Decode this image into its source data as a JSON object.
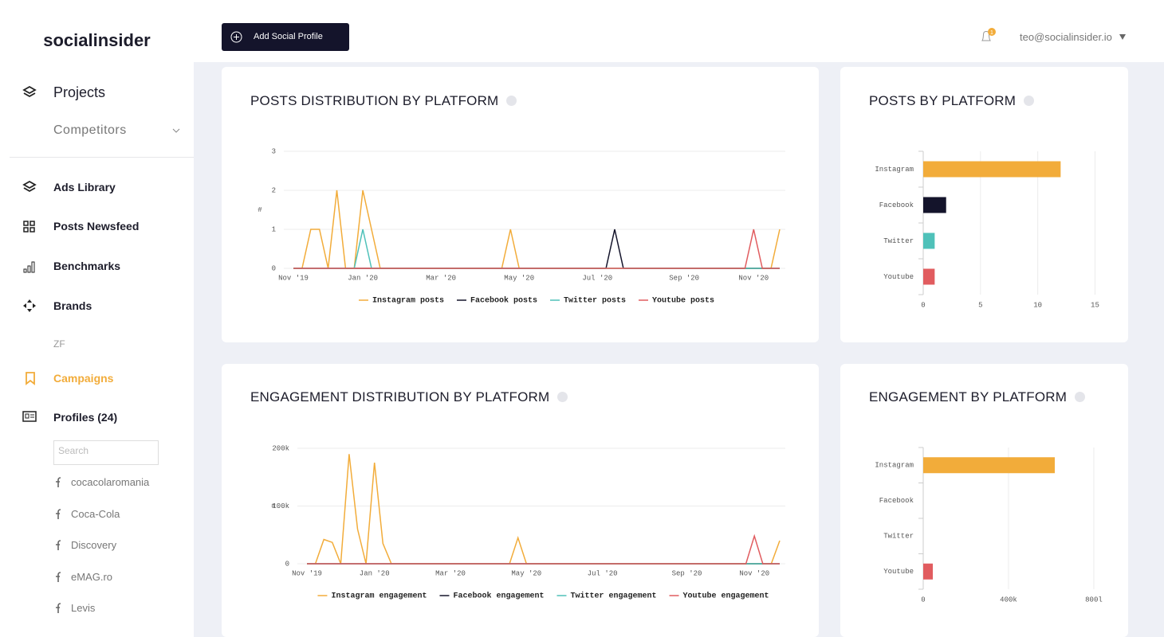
{
  "sidebar": {
    "logo": "socialinsider",
    "projects": "Projects",
    "competitors": "Competitors",
    "nav": [
      "Ads Library",
      "Posts Newsfeed",
      "Benchmarks",
      "Brands"
    ],
    "brand_item": "ZF",
    "campaigns": "Campaigns",
    "profiles": "Profiles (24)",
    "search_placeholder": "Search",
    "profile_list": [
      "cocacolaromania",
      "Coca-Cola",
      "Discovery",
      "eMAG.ro",
      "Levis"
    ]
  },
  "header": {
    "button": "Add Social Profile",
    "notifications": "1",
    "user": "teo@socialinsider.io"
  },
  "chart_data": [
    {
      "type": "line",
      "title": "POSTS DISTRIBUTION BY PLATFORM",
      "ylabel": "#",
      "categories": [
        "Nov '19",
        null,
        null,
        null,
        null,
        null,
        null,
        null,
        "Jan '20",
        null,
        null,
        null,
        null,
        null,
        null,
        null,
        null,
        "Mar '20",
        null,
        null,
        null,
        null,
        null,
        null,
        null,
        null,
        "May '20",
        null,
        null,
        null,
        null,
        null,
        null,
        null,
        null,
        "Jul '20",
        null,
        null,
        null,
        null,
        null,
        null,
        null,
        null,
        null,
        "Sep '20",
        null,
        null,
        null,
        null,
        null,
        null,
        null,
        "Nov '20",
        null,
        null,
        null
      ],
      "series": [
        {
          "name": "Instagram posts",
          "color": "#f2ac3a",
          "values": [
            0,
            0,
            1,
            1,
            0,
            2,
            0,
            0,
            2,
            1,
            0,
            0,
            0,
            0,
            0,
            0,
            0,
            0,
            0,
            0,
            0,
            0,
            0,
            0,
            0,
            1,
            0,
            0,
            0,
            0,
            0,
            0,
            0,
            0,
            0,
            0,
            0,
            0,
            0,
            0,
            0,
            0,
            0,
            0,
            0,
            0,
            0,
            0,
            0,
            0,
            0,
            0,
            0,
            0,
            0,
            0,
            1
          ]
        },
        {
          "name": "Facebook posts",
          "color": "#14142b",
          "values": [
            0,
            0,
            0,
            0,
            0,
            0,
            0,
            0,
            0,
            0,
            0,
            0,
            0,
            0,
            0,
            0,
            0,
            0,
            0,
            0,
            0,
            0,
            0,
            0,
            0,
            0,
            0,
            0,
            0,
            0,
            0,
            0,
            0,
            0,
            0,
            0,
            0,
            1,
            0,
            0,
            0,
            0,
            0,
            0,
            0,
            0,
            0,
            0,
            0,
            0,
            0,
            0,
            0,
            0,
            0,
            0,
            0
          ]
        },
        {
          "name": "Twitter posts",
          "color": "#4fc1b9",
          "values": [
            0,
            0,
            0,
            0,
            0,
            0,
            0,
            0,
            1,
            0,
            0,
            0,
            0,
            0,
            0,
            0,
            0,
            0,
            0,
            0,
            0,
            0,
            0,
            0,
            0,
            0,
            0,
            0,
            0,
            0,
            0,
            0,
            0,
            0,
            0,
            0,
            0,
            0,
            0,
            0,
            0,
            0,
            0,
            0,
            0,
            0,
            0,
            0,
            0,
            0,
            0,
            0,
            0,
            0,
            0,
            0,
            0
          ]
        },
        {
          "name": "Youtube posts",
          "color": "#e15c5f",
          "values": [
            0,
            0,
            0,
            0,
            0,
            0,
            0,
            0,
            0,
            0,
            0,
            0,
            0,
            0,
            0,
            0,
            0,
            0,
            0,
            0,
            0,
            0,
            0,
            0,
            0,
            0,
            0,
            0,
            0,
            0,
            0,
            0,
            0,
            0,
            0,
            0,
            0,
            0,
            0,
            0,
            0,
            0,
            0,
            0,
            0,
            0,
            0,
            0,
            0,
            0,
            0,
            0,
            0,
            1,
            0,
            0,
            0
          ]
        }
      ],
      "ylim": [
        0,
        3
      ],
      "yticks": [
        0,
        1,
        2,
        3
      ],
      "grid": true,
      "legend": "bottom"
    },
    {
      "type": "bar",
      "title": "POSTS BY PLATFORM",
      "orientation": "horizontal",
      "categories": [
        "Instagram",
        "Facebook",
        "Twitter",
        "Youtube"
      ],
      "values": [
        12,
        2,
        1,
        1
      ],
      "colors": [
        "#f2ac3a",
        "#14142b",
        "#4fc1b9",
        "#e15c5f"
      ],
      "xlim": [
        0,
        16.5
      ],
      "xticks": [
        0,
        5,
        10,
        15
      ],
      "grid": true
    },
    {
      "type": "line",
      "title": "ENGAGEMENT DISTRIBUTION BY PLATFORM",
      "ylabel": "#",
      "categories": [
        "Nov '19",
        null,
        null,
        null,
        null,
        null,
        null,
        null,
        "Jan '20",
        null,
        null,
        null,
        null,
        null,
        null,
        null,
        null,
        "Mar '20",
        null,
        null,
        null,
        null,
        null,
        null,
        null,
        null,
        "May '20",
        null,
        null,
        null,
        null,
        null,
        null,
        null,
        null,
        "Jul '20",
        null,
        null,
        null,
        null,
        null,
        null,
        null,
        null,
        null,
        "Sep '20",
        null,
        null,
        null,
        null,
        null,
        null,
        null,
        "Nov '20",
        null,
        null,
        null
      ],
      "series": [
        {
          "name": "Instagram engagement",
          "color": "#f2ac3a",
          "values": [
            0,
            0,
            42000,
            37000,
            0,
            190000,
            60000,
            0,
            175000,
            35000,
            0,
            0,
            0,
            0,
            0,
            0,
            0,
            0,
            0,
            0,
            0,
            0,
            0,
            0,
            0,
            45000,
            0,
            0,
            0,
            0,
            0,
            0,
            0,
            0,
            0,
            0,
            0,
            0,
            0,
            0,
            0,
            0,
            0,
            0,
            0,
            0,
            0,
            0,
            0,
            0,
            0,
            0,
            0,
            0,
            0,
            0,
            40000
          ]
        },
        {
          "name": "Facebook engagement",
          "color": "#14142b",
          "values": [
            0,
            0,
            0,
            0,
            0,
            0,
            0,
            0,
            0,
            0,
            0,
            0,
            0,
            0,
            0,
            0,
            0,
            0,
            0,
            0,
            0,
            0,
            0,
            0,
            0,
            0,
            0,
            0,
            0,
            0,
            0,
            0,
            0,
            0,
            0,
            0,
            0,
            0,
            0,
            0,
            0,
            0,
            0,
            0,
            0,
            0,
            0,
            0,
            0,
            0,
            0,
            0,
            0,
            0,
            0,
            0,
            0
          ]
        },
        {
          "name": "Twitter engagement",
          "color": "#4fc1b9",
          "values": [
            0,
            0,
            0,
            0,
            0,
            0,
            0,
            0,
            0,
            0,
            0,
            0,
            0,
            0,
            0,
            0,
            0,
            0,
            0,
            0,
            0,
            0,
            0,
            0,
            0,
            0,
            0,
            0,
            0,
            0,
            0,
            0,
            0,
            0,
            0,
            0,
            0,
            0,
            0,
            0,
            0,
            0,
            0,
            0,
            0,
            0,
            0,
            0,
            0,
            0,
            0,
            0,
            0,
            0,
            0,
            0,
            0
          ]
        },
        {
          "name": "Youtube engagement",
          "color": "#e15c5f",
          "values": [
            0,
            0,
            0,
            0,
            0,
            0,
            0,
            0,
            0,
            0,
            0,
            0,
            0,
            0,
            0,
            0,
            0,
            0,
            0,
            0,
            0,
            0,
            0,
            0,
            0,
            0,
            0,
            0,
            0,
            0,
            0,
            0,
            0,
            0,
            0,
            0,
            0,
            0,
            0,
            0,
            0,
            0,
            0,
            0,
            0,
            0,
            0,
            0,
            0,
            0,
            0,
            0,
            0,
            48000,
            0,
            0,
            0
          ]
        }
      ],
      "ylim": [
        0,
        200000
      ],
      "yticks": [
        0,
        {
          "value": 100000,
          "label": "100k"
        },
        {
          "value": 200000,
          "label": "200k"
        }
      ],
      "grid": true,
      "legend": "bottom"
    },
    {
      "type": "bar",
      "title": "ENGAGEMENT BY PLATFORM",
      "orientation": "horizontal",
      "categories": [
        "Instagram",
        "Facebook",
        "Twitter",
        "Youtube"
      ],
      "values": [
        617000,
        0,
        0,
        45000
      ],
      "colors": [
        "#f2ac3a",
        "#14142b",
        "#4fc1b9",
        "#e15c5f"
      ],
      "xlim": [
        0,
        860000
      ],
      "xticks": [
        0,
        {
          "value": 400000,
          "label": "400k"
        },
        {
          "value": 800000,
          "label": "800l"
        }
      ],
      "grid": true
    }
  ]
}
